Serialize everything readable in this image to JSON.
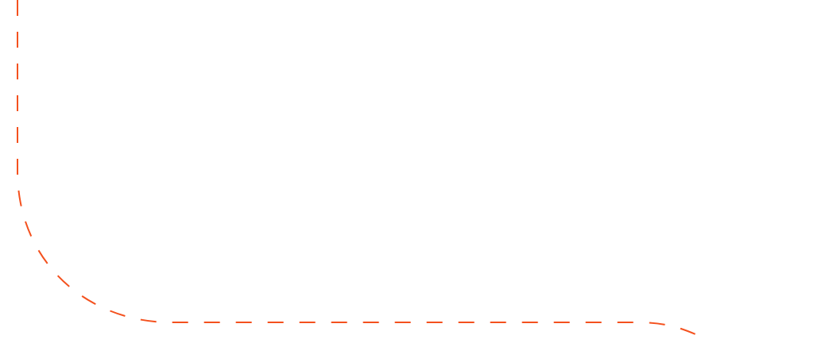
{
  "connector": {
    "stroke_color": "#f4511e",
    "style": "dashed",
    "shape": "vertical line curving into horizontal line, ending with a slight downward curve"
  }
}
